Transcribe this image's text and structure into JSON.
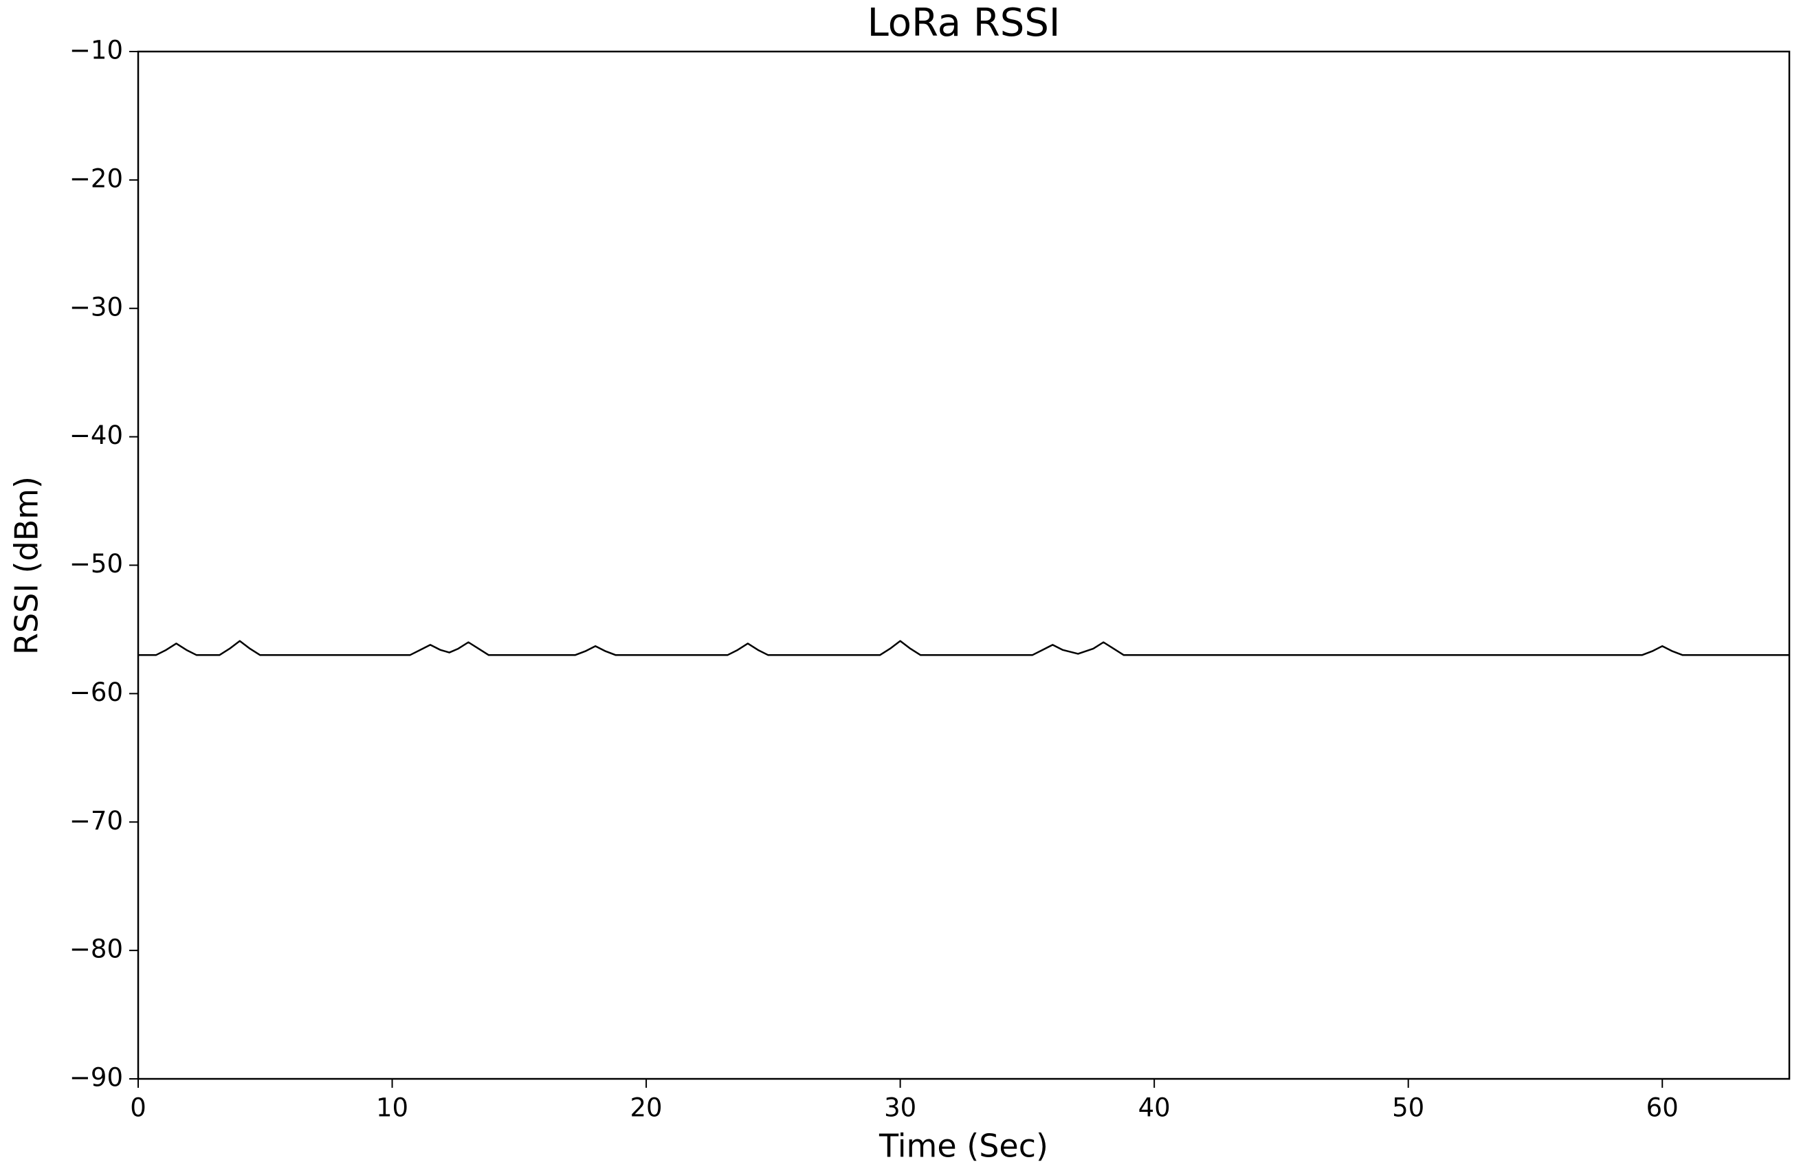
{
  "chart_data": {
    "type": "line",
    "title": "LoRa RSSI",
    "x_label": "Time (Sec)",
    "y_label": "RSSI (dBm)",
    "x": [
      0,
      0.7,
      1.1,
      1.5,
      1.9,
      2.3,
      3.2,
      3.6,
      4,
      4.4,
      4.8,
      10.7,
      11.1,
      11.5,
      11.9,
      12.25,
      12.6,
      13,
      13.4,
      13.8,
      17.2,
      17.6,
      18,
      18.4,
      18.8,
      23.2,
      23.6,
      24,
      24.4,
      24.8,
      29.2,
      29.6,
      30,
      30.4,
      30.8,
      35.2,
      35.6,
      36,
      36.4,
      37,
      37.6,
      38,
      38.4,
      38.8,
      59.2,
      59.6,
      60,
      60.4,
      60.8,
      65
    ],
    "series": [
      {
        "color": "#000000",
        "values": [
          -57,
          -57,
          -56.6,
          -56.1,
          -56.6,
          -57,
          -57,
          -56.5,
          -55.9,
          -56.5,
          -57,
          -57,
          -56.6,
          -56.2,
          -56.6,
          -56.8,
          -56.5,
          -56,
          -56.5,
          -57,
          -57,
          -56.7,
          -56.3,
          -56.7,
          -57,
          -57,
          -56.6,
          -56.1,
          -56.6,
          -57,
          -57,
          -56.5,
          -55.9,
          -56.5,
          -57,
          -57,
          -56.6,
          -56.2,
          -56.6,
          -56.9,
          -56.5,
          -56,
          -56.5,
          -57,
          -57,
          -56.7,
          -56.3,
          -56.7,
          -57,
          -57
        ]
      }
    ],
    "xlim": [
      0,
      65
    ],
    "xticks": [
      0,
      10,
      20,
      30,
      40,
      50,
      60
    ],
    "ylim": [
      -90,
      -10
    ],
    "yticks": [
      {
        "value": -90,
        "label": "−90"
      },
      {
        "value": -80,
        "label": "−80"
      },
      {
        "value": -70,
        "label": "−70"
      },
      {
        "value": -60,
        "label": "−60"
      },
      {
        "value": -50,
        "label": "−50"
      },
      {
        "value": -40,
        "label": "−40"
      },
      {
        "value": -30,
        "label": "−30"
      },
      {
        "value": -20,
        "label": "−20"
      },
      {
        "value": -10,
        "label": "−10"
      }
    ],
    "grid": false
  }
}
